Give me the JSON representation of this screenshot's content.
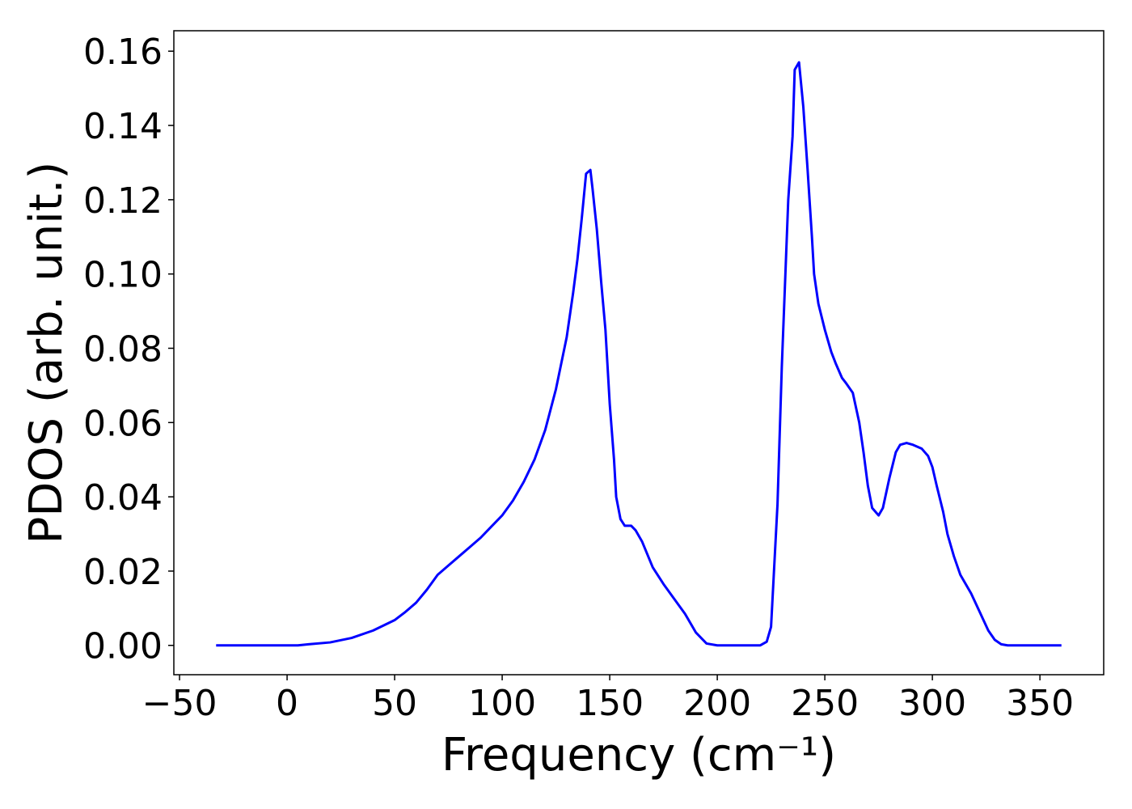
{
  "chart_data": {
    "type": "line",
    "x_label": "Frequency (cm⁻¹)",
    "y_label": "PDOS (arb. unit.)",
    "xlim": [
      -52.65,
      379.65
    ],
    "ylim": [
      -0.0079,
      0.1655
    ],
    "xticks": [
      {
        "value": -50,
        "label": "−50"
      },
      0,
      50,
      100,
      150,
      200,
      250,
      300,
      350
    ],
    "yticks": [
      {
        "value": 0,
        "label": "0.00"
      },
      {
        "value": 0.02,
        "label": "0.02"
      },
      {
        "value": 0.04,
        "label": "0.04"
      },
      {
        "value": 0.06,
        "label": "0.06"
      },
      {
        "value": 0.08,
        "label": "0.08"
      },
      {
        "value": 0.1,
        "label": "0.10"
      },
      {
        "value": 0.12,
        "label": "0.12"
      },
      {
        "value": 0.14,
        "label": "0.14"
      },
      {
        "value": 0.16,
        "label": "0.16"
      }
    ],
    "x": [
      -33,
      0,
      5,
      10,
      20,
      30,
      40,
      50,
      55,
      60,
      65,
      70,
      75,
      80,
      85,
      90,
      95,
      100,
      105,
      110,
      115,
      120,
      125,
      130,
      133,
      135,
      137,
      138,
      139,
      141,
      142,
      144,
      146,
      148,
      150,
      152,
      153,
      155,
      157,
      160,
      162,
      165,
      170,
      175,
      180,
      185,
      190,
      195,
      200,
      210,
      220,
      223,
      225,
      226,
      228,
      230,
      232,
      233,
      235,
      236,
      238,
      240,
      242,
      244,
      245,
      247,
      250,
      253,
      255,
      258,
      260,
      263,
      266,
      268,
      270,
      272,
      275,
      277,
      280,
      283,
      285,
      288,
      291,
      295,
      298,
      300,
      302,
      305,
      307,
      310,
      313,
      318,
      322,
      326,
      329,
      332,
      335,
      360
    ],
    "series": [
      {
        "color": "#0000ff",
        "values": [
          0,
          0,
          0,
          0.0003,
          0.0008,
          0.002,
          0.004,
          0.0068,
          0.009,
          0.0115,
          0.015,
          0.019,
          0.0215,
          0.024,
          0.0265,
          0.029,
          0.032,
          0.035,
          0.039,
          0.044,
          0.05,
          0.058,
          0.069,
          0.083,
          0.095,
          0.104,
          0.115,
          0.121,
          0.127,
          0.128,
          0.123,
          0.112,
          0.098,
          0.085,
          0.065,
          0.05,
          0.04,
          0.034,
          0.0322,
          0.0322,
          0.031,
          0.028,
          0.021,
          0.0165,
          0.0125,
          0.0085,
          0.0035,
          0.0005,
          0,
          0,
          0,
          0.001,
          0.005,
          0.016,
          0.038,
          0.075,
          0.105,
          0.12,
          0.137,
          0.155,
          0.157,
          0.145,
          0.128,
          0.11,
          0.1,
          0.092,
          0.085,
          0.079,
          0.076,
          0.072,
          0.0705,
          0.068,
          0.06,
          0.052,
          0.043,
          0.037,
          0.035,
          0.037,
          0.045,
          0.052,
          0.054,
          0.0545,
          0.054,
          0.053,
          0.051,
          0.048,
          0.043,
          0.036,
          0.03,
          0.024,
          0.019,
          0.014,
          0.009,
          0.004,
          0.0015,
          0.0003,
          0,
          0
        ]
      }
    ]
  }
}
